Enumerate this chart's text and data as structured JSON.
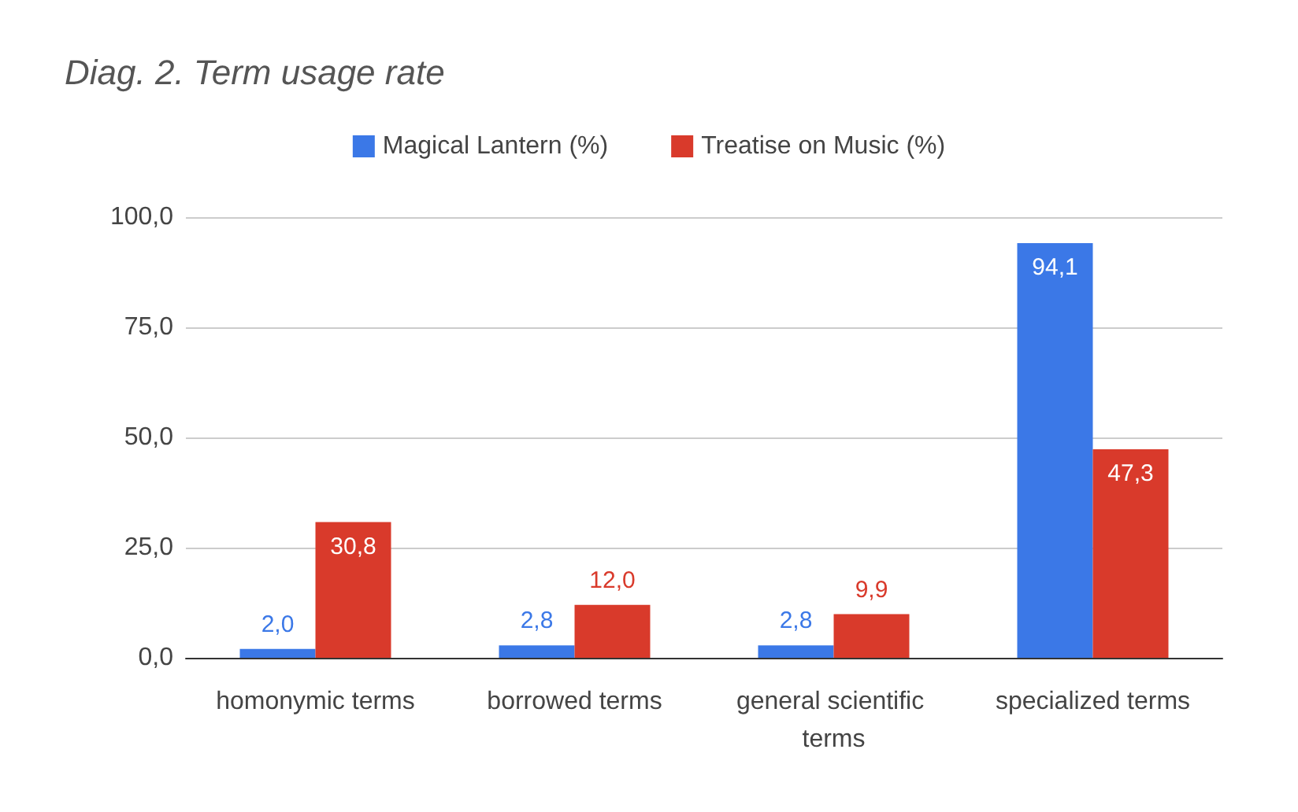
{
  "chart_data": {
    "type": "bar",
    "title": "Diag. 2. Term usage rate",
    "categories": [
      "homonymic terms",
      "borrowed terms",
      "general scientific terms",
      "specialized terms"
    ],
    "series": [
      {
        "name": "Magical Lantern (%)",
        "color": "#3b78e7",
        "values": [
          2.0,
          2.8,
          2.8,
          94.1
        ],
        "value_labels": [
          "2,0",
          "2,8",
          "2,8",
          "94,1"
        ]
      },
      {
        "name": "Treatise on Music (%)",
        "color": "#d93a2b",
        "values": [
          30.8,
          12.0,
          9.9,
          47.3
        ],
        "value_labels": [
          "30,8",
          "12,0",
          "9,9",
          "47,3"
        ]
      }
    ],
    "ylim": [
      0,
      100
    ],
    "yticks": [
      {
        "value": 0,
        "label": "0,0"
      },
      {
        "value": 25,
        "label": "25,0"
      },
      {
        "value": 50,
        "label": "50,0"
      },
      {
        "value": 75,
        "label": "75,0"
      },
      {
        "value": 100,
        "label": "100,0"
      }
    ],
    "grid": "y",
    "legend": "top"
  }
}
